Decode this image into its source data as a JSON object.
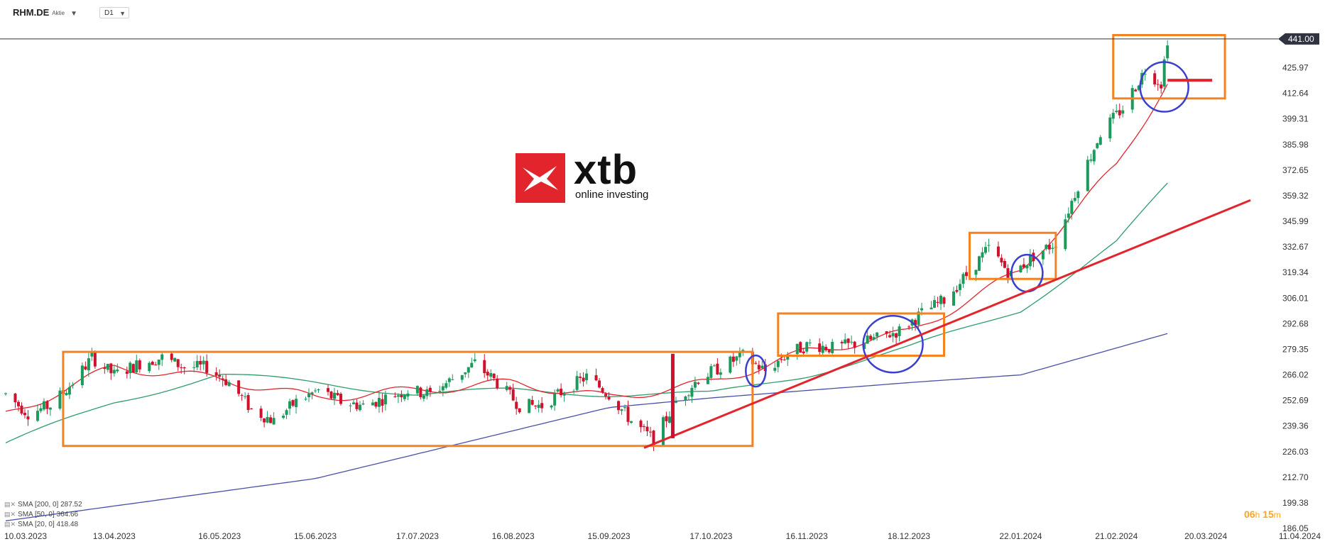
{
  "header": {
    "symbol": "RHM.DE",
    "instrument_type": "Aktie",
    "timeframe": "D1"
  },
  "logo": {
    "brand": "xtb",
    "tagline": "online investing"
  },
  "countdown": {
    "hours": "06",
    "h_unit": "h",
    "minutes": "15",
    "m_unit": "m"
  },
  "indicators": [
    {
      "label": "SMA [200, 0] 287.52",
      "color": "#4a4fa8"
    },
    {
      "label": "SMA [50, 0] 364.66",
      "color": "#2e9e6b"
    },
    {
      "label": "SMA [20, 0] 418.48",
      "color": "#e2252c"
    }
  ],
  "colors": {
    "up": "#1b9a5b",
    "down": "#d0112b",
    "box": "#f58220",
    "circle": "#3a3fcf",
    "trend": "#e2252c",
    "sma200": "#4a4fa8",
    "sma50": "#2e9e6b",
    "sma20": "#e2252c"
  },
  "chart_data": {
    "type": "candlestick",
    "title": "",
    "current_price": 441.0,
    "y_ticks": [
      186.05,
      199.38,
      212.7,
      226.03,
      239.36,
      252.69,
      266.02,
      279.35,
      292.68,
      306.01,
      319.34,
      332.67,
      345.99,
      359.32,
      372.65,
      385.98,
      399.31,
      412.64,
      425.97
    ],
    "ylim": [
      186.05,
      446.5
    ],
    "x_labels": [
      "10.03.2023",
      "13.04.2023",
      "16.05.2023",
      "15.06.2023",
      "17.07.2023",
      "16.08.2023",
      "15.09.2023",
      "17.10.2023",
      "16.11.2023",
      "18.12.2023",
      "22.01.2024",
      "21.02.2024",
      "20.03.2024",
      "11.04.2024"
    ],
    "price_path": [
      [
        "2023-03-10",
        256
      ],
      [
        "2023-03-17",
        246
      ],
      [
        "2023-03-24",
        250
      ],
      [
        "2023-03-31",
        262
      ],
      [
        "2023-04-06",
        275
      ],
      [
        "2023-04-13",
        266
      ],
      [
        "2023-04-21",
        272
      ],
      [
        "2023-04-28",
        275
      ],
      [
        "2023-05-05",
        270
      ],
      [
        "2023-05-12",
        270
      ],
      [
        "2023-05-19",
        262
      ],
      [
        "2023-05-26",
        248
      ],
      [
        "2023-06-02",
        242
      ],
      [
        "2023-06-09",
        252
      ],
      [
        "2023-06-16",
        258
      ],
      [
        "2023-06-23",
        252
      ],
      [
        "2023-06-30",
        250
      ],
      [
        "2023-07-07",
        254
      ],
      [
        "2023-07-14",
        258
      ],
      [
        "2023-07-21",
        256
      ],
      [
        "2023-07-28",
        264
      ],
      [
        "2023-08-04",
        272
      ],
      [
        "2023-08-11",
        262
      ],
      [
        "2023-08-18",
        250
      ],
      [
        "2023-08-25",
        250
      ],
      [
        "2023-09-01",
        258
      ],
      [
        "2023-09-08",
        265
      ],
      [
        "2023-09-15",
        256
      ],
      [
        "2023-09-22",
        242
      ],
      [
        "2023-09-29",
        232
      ],
      [
        "2023-10-06",
        252
      ],
      [
        "2023-10-13",
        264
      ],
      [
        "2023-10-20",
        270
      ],
      [
        "2023-10-27",
        276
      ],
      [
        "2023-11-03",
        268
      ],
      [
        "2023-11-10",
        277
      ],
      [
        "2023-11-17",
        282
      ],
      [
        "2023-11-24",
        280
      ],
      [
        "2023-12-01",
        282
      ],
      [
        "2023-12-08",
        285
      ],
      [
        "2023-12-15",
        289
      ],
      [
        "2023-12-22",
        298
      ],
      [
        "2023-12-29",
        305
      ],
      [
        "2024-01-05",
        318
      ],
      [
        "2024-01-12",
        332
      ],
      [
        "2024-01-19",
        318
      ],
      [
        "2024-01-26",
        328
      ],
      [
        "2024-02-02",
        335
      ],
      [
        "2024-02-09",
        365
      ],
      [
        "2024-02-16",
        392
      ],
      [
        "2024-02-23",
        405
      ],
      [
        "2024-03-01",
        425
      ],
      [
        "2024-03-06",
        418
      ],
      [
        "2024-03-08",
        441
      ]
    ],
    "series": [
      {
        "name": "SMA 200",
        "values": [
          [
            "2023-03-10",
            190
          ],
          [
            "2023-06-15",
            212
          ],
          [
            "2023-09-15",
            249
          ],
          [
            "2023-10-17",
            254
          ],
          [
            "2023-12-18",
            262
          ],
          [
            "2024-01-22",
            266
          ],
          [
            "2024-03-08",
            287.52
          ]
        ]
      },
      {
        "name": "SMA 50",
        "values": [
          [
            "2023-03-10",
            230
          ],
          [
            "2023-04-13",
            252
          ],
          [
            "2023-05-16",
            266
          ],
          [
            "2023-06-15",
            262
          ],
          [
            "2023-07-17",
            256
          ],
          [
            "2023-08-16",
            258
          ],
          [
            "2023-09-15",
            256
          ],
          [
            "2023-10-17",
            256
          ],
          [
            "2023-11-16",
            266
          ],
          [
            "2023-12-18",
            280
          ],
          [
            "2024-01-22",
            300
          ],
          [
            "2024-02-21",
            335
          ],
          [
            "2024-03-08",
            364.66
          ]
        ]
      },
      {
        "name": "SMA 20",
        "values": [
          [
            "2023-03-10",
            245
          ],
          [
            "2023-04-13",
            270
          ],
          [
            "2023-05-16",
            264
          ],
          [
            "2023-06-15",
            254
          ],
          [
            "2023-07-17",
            258
          ],
          [
            "2023-08-16",
            262
          ],
          [
            "2023-09-15",
            254
          ],
          [
            "2023-10-17",
            262
          ],
          [
            "2023-11-16",
            278
          ],
          [
            "2023-12-18",
            288
          ],
          [
            "2024-01-22",
            320
          ],
          [
            "2024-02-21",
            375
          ],
          [
            "2024-03-08",
            418.48
          ]
        ]
      }
    ],
    "annotations": {
      "boxes": [
        {
          "from": "2023-03-28",
          "to": "2023-10-30",
          "low": 229,
          "high": 278
        },
        {
          "from": "2023-11-07",
          "to": "2023-12-29",
          "low": 276,
          "high": 298
        },
        {
          "from": "2024-01-06",
          "to": "2024-02-02",
          "low": 316,
          "high": 340
        },
        {
          "from": "2024-02-20",
          "to": "2024-03-26",
          "low": 410,
          "high": 443
        }
      ],
      "circles": [
        {
          "date": "2023-10-31",
          "price": 268
        },
        {
          "date": "2023-12-13",
          "price": 282
        },
        {
          "date": "2024-01-24",
          "price": 319
        },
        {
          "date": "2024-03-07",
          "price": 416
        }
      ],
      "trend_line": [
        [
          "2023-09-26",
          228
        ],
        [
          "2024-04-03",
          357
        ]
      ],
      "level_line": {
        "from": "2024-03-08",
        "to": "2024-03-22",
        "price": 419.5
      },
      "vertical_spike": {
        "date": "2023-10-05",
        "low": 233,
        "high": 277
      }
    }
  }
}
